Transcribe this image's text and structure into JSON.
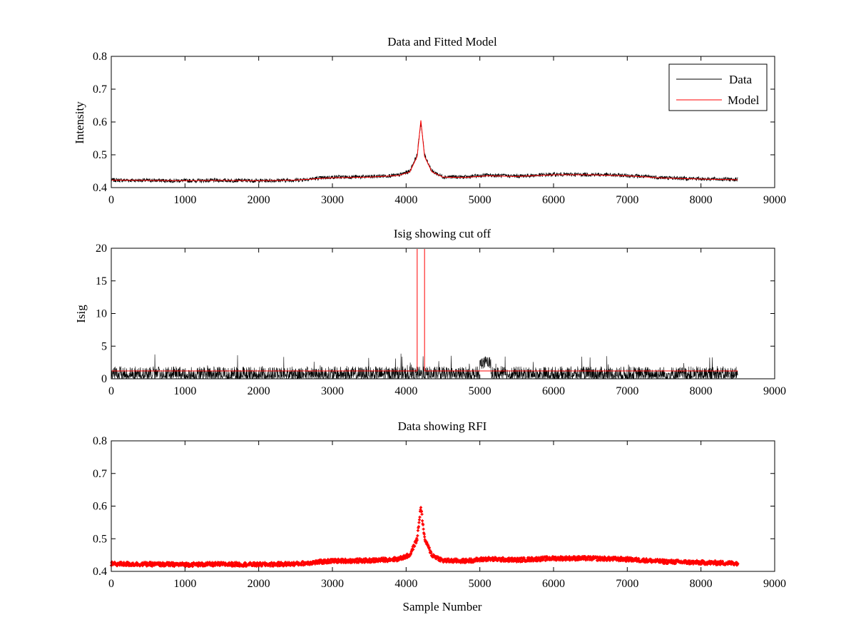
{
  "colors": {
    "data": "#000000",
    "model": "#ff0000",
    "cutoff": "#ff0000",
    "rfi": "#ff0000"
  },
  "chart_data": [
    {
      "type": "line",
      "title": "Data and Fitted Model",
      "xlabel": "",
      "ylabel": "Intensity",
      "xlim": [
        0,
        9000
      ],
      "ylim": [
        0.4,
        0.8
      ],
      "xticks": [
        "0",
        "1000",
        "2000",
        "3000",
        "4000",
        "5000",
        "6000",
        "7000",
        "8000",
        "9000"
      ],
      "yticks": [
        "0.4",
        "0.5",
        "0.6",
        "0.7",
        "0.8"
      ],
      "legend": {
        "placement": "top-right",
        "entries": [
          "Data",
          "Model"
        ]
      },
      "series": [
        {
          "name": "Data",
          "noise_amplitude": 0.006,
          "x": [
            0,
            500,
            1000,
            1500,
            2000,
            2500,
            3000,
            3500,
            3900,
            4050,
            4150,
            4200,
            4250,
            4350,
            4500,
            4800,
            5100,
            5500,
            6000,
            6500,
            7000,
            7500,
            8000,
            8500
          ],
          "y": [
            0.423,
            0.422,
            0.421,
            0.422,
            0.421,
            0.423,
            0.432,
            0.433,
            0.438,
            0.45,
            0.5,
            0.6,
            0.5,
            0.45,
            0.433,
            0.432,
            0.438,
            0.435,
            0.44,
            0.44,
            0.437,
            0.43,
            0.427,
            0.425
          ]
        },
        {
          "name": "Model",
          "x": [
            0,
            500,
            1000,
            1500,
            2000,
            2500,
            3000,
            3500,
            3900,
            4050,
            4150,
            4200,
            4250,
            4350,
            4500,
            4800,
            5100,
            5500,
            6000,
            6500,
            7000,
            7500,
            8000,
            8500
          ],
          "y": [
            0.423,
            0.422,
            0.421,
            0.422,
            0.421,
            0.423,
            0.43,
            0.432,
            0.437,
            0.448,
            0.495,
            0.605,
            0.495,
            0.448,
            0.432,
            0.431,
            0.436,
            0.434,
            0.439,
            0.439,
            0.436,
            0.429,
            0.426,
            0.424
          ]
        }
      ]
    },
    {
      "type": "line",
      "title": "Isig showing cut off",
      "xlabel": "",
      "ylabel": "Isig",
      "xlim": [
        0,
        9000
      ],
      "ylim": [
        0,
        20
      ],
      "xticks": [
        "0",
        "1000",
        "2000",
        "3000",
        "4000",
        "5000",
        "6000",
        "7000",
        "8000",
        "9000"
      ],
      "yticks": [
        "0",
        "5",
        "10",
        "15",
        "20"
      ],
      "series": [
        {
          "name": "Isig",
          "x_range": [
            0,
            8500
          ],
          "typical_max": 1.9,
          "peak_max": 3.9
        },
        {
          "name": "Cut off",
          "level": 1.2,
          "spike_x": [
            4150,
            4250
          ]
        }
      ]
    },
    {
      "type": "scatter",
      "title": "Data showing RFI",
      "xlabel": "Sample Number",
      "ylabel": "",
      "xlim": [
        0,
        9000
      ],
      "ylim": [
        0.4,
        0.8
      ],
      "xticks": [
        "0",
        "1000",
        "2000",
        "3000",
        "4000",
        "5000",
        "6000",
        "7000",
        "8000",
        "9000"
      ],
      "yticks": [
        "0.4",
        "0.5",
        "0.6",
        "0.7",
        "0.8"
      ],
      "series": [
        {
          "name": "RFI",
          "x": [
            0,
            500,
            1000,
            1500,
            2000,
            2500,
            3000,
            3500,
            3900,
            4050,
            4150,
            4200,
            4250,
            4350,
            4500,
            4800,
            5100,
            5500,
            6000,
            6500,
            7000,
            7500,
            8000,
            8500
          ],
          "y": [
            0.423,
            0.422,
            0.421,
            0.422,
            0.421,
            0.423,
            0.432,
            0.433,
            0.438,
            0.45,
            0.5,
            0.6,
            0.5,
            0.45,
            0.433,
            0.432,
            0.438,
            0.435,
            0.44,
            0.44,
            0.437,
            0.43,
            0.427,
            0.425
          ]
        }
      ]
    }
  ]
}
